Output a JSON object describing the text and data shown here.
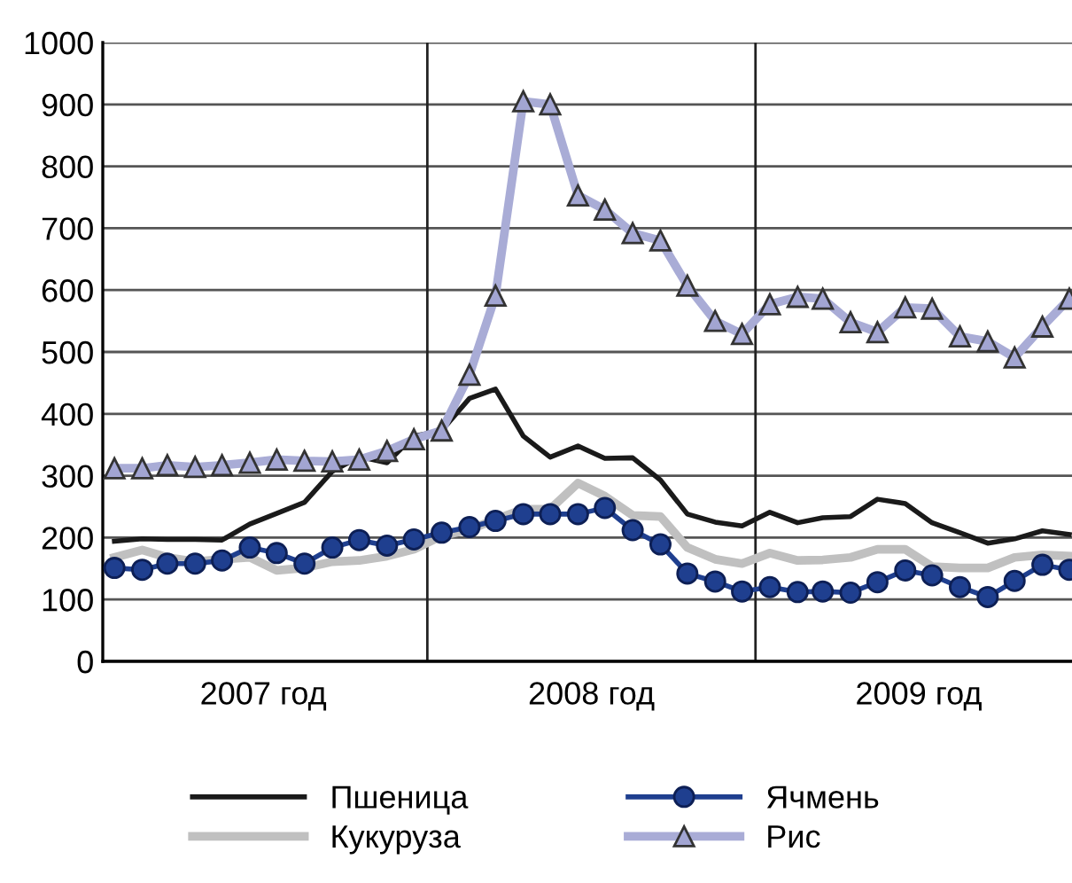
{
  "chart_data": {
    "type": "line",
    "x": [
      "2007-01",
      "2007-02",
      "2007-03",
      "2007-04",
      "2007-05",
      "2007-06",
      "2007-07",
      "2007-08",
      "2007-09",
      "2007-10",
      "2007-11",
      "2007-12",
      "2008-01",
      "2008-02",
      "2008-03",
      "2008-04",
      "2008-05",
      "2008-06",
      "2008-07",
      "2008-08",
      "2008-09",
      "2008-10",
      "2008-11",
      "2008-12",
      "2009-01",
      "2009-02",
      "2009-03",
      "2009-04",
      "2009-05",
      "2009-06",
      "2009-07",
      "2009-08",
      "2009-09",
      "2009-10",
      "2009-11",
      "2009-12"
    ],
    "xlim": [
      "2006-12-19",
      "2009-12-04"
    ],
    "xticks": [
      {
        "value": "2007-06-16",
        "label": "2007 год"
      },
      {
        "value": "2008-06-16",
        "label": "2008 год"
      },
      {
        "value": "2009-06-16",
        "label": "2009 год"
      }
    ],
    "ylim": [
      0,
      1000
    ],
    "yticks": [
      0,
      100,
      200,
      300,
      400,
      500,
      600,
      700,
      800,
      900,
      1000
    ],
    "grid": "y",
    "legend": "bottom",
    "ref_lines": [
      {
        "axis": "x",
        "value": "2007-12-16",
        "color": "#222222"
      },
      {
        "axis": "x",
        "value": "2008-12-16",
        "color": "#222222"
      }
    ],
    "series": [
      {
        "name": "Пшеница",
        "color": "#1a1a1a",
        "marker": "none",
        "values": [
          194,
          198,
          197,
          197,
          196,
          222,
          239,
          257,
          307,
          331,
          321,
          364,
          373,
          425,
          440,
          364,
          330,
          348,
          328,
          329,
          293,
          238,
          225,
          219,
          241,
          224,
          232,
          234,
          262,
          255,
          224,
          208,
          191,
          198,
          211,
          205
        ]
      },
      {
        "name": "Кукуруза",
        "color": "#c0c0c0",
        "marker": "none",
        "values": [
          168,
          180,
          168,
          161,
          165,
          168,
          147,
          151,
          161,
          163,
          170,
          181,
          203,
          213,
          229,
          246,
          246,
          288,
          267,
          236,
          234,
          184,
          165,
          158,
          175,
          163,
          164,
          168,
          181,
          181,
          153,
          151,
          151,
          168,
          172,
          170
        ]
      },
      {
        "name": "Ячмень",
        "color": "#1f3f8f",
        "marker": "circle",
        "values": [
          151,
          148,
          158,
          158,
          163,
          184,
          175,
          158,
          184,
          196,
          187,
          197,
          208,
          217,
          227,
          238,
          238,
          238,
          248,
          212,
          189,
          142,
          129,
          113,
          120,
          112,
          113,
          111,
          128,
          147,
          139,
          120,
          104,
          130,
          156,
          148
        ]
      },
      {
        "name": "Рис",
        "color": "#a9acd6",
        "marker": "triangle",
        "values": [
          312,
          312,
          317,
          314,
          317,
          321,
          326,
          324,
          323,
          326,
          340,
          359,
          373,
          463,
          591,
          905,
          900,
          753,
          730,
          692,
          680,
          607,
          550,
          529,
          577,
          589,
          586,
          548,
          532,
          572,
          570,
          525,
          517,
          491,
          541,
          586
        ]
      }
    ]
  }
}
